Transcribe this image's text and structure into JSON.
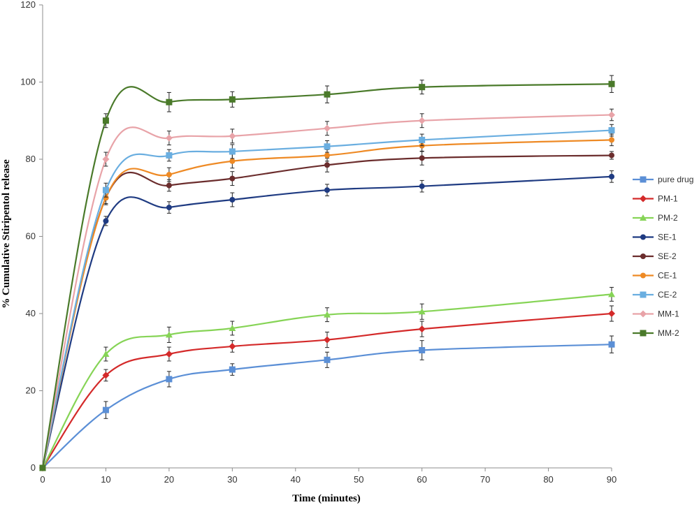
{
  "chart_data": {
    "type": "line",
    "title": "",
    "xlabel": "Time (minutes)",
    "ylabel": "% Cumulative Stiripentol release",
    "xlim": [
      0,
      90
    ],
    "ylim": [
      0,
      120
    ],
    "xticks": [
      0,
      10,
      20,
      30,
      40,
      50,
      60,
      70,
      80,
      90
    ],
    "yticks": [
      0,
      20,
      40,
      60,
      80,
      100,
      120
    ],
    "grid": false,
    "legend_position": "right",
    "x": [
      0,
      10,
      20,
      30,
      45,
      60,
      90
    ],
    "series": [
      {
        "name": "pure drug",
        "color": "#5b8fd6",
        "marker": "square",
        "values": [
          0,
          15,
          23,
          25.5,
          28,
          30.5,
          32
        ],
        "errors": [
          0,
          2.2,
          2,
          1.5,
          2,
          2.5,
          2.2
        ]
      },
      {
        "name": "PM-1",
        "color": "#d42a2a",
        "marker": "diamond",
        "values": [
          0,
          24,
          29.5,
          31.5,
          33.2,
          36,
          40
        ],
        "errors": [
          0,
          1.5,
          1.8,
          1.5,
          2,
          2,
          2
        ]
      },
      {
        "name": "PM-2",
        "color": "#86d456",
        "marker": "triangle",
        "values": [
          0,
          29.5,
          34.5,
          36.2,
          39.7,
          40.5,
          45
        ],
        "errors": [
          0,
          1.8,
          2,
          1.8,
          1.8,
          2,
          1.8
        ]
      },
      {
        "name": "SE-1",
        "color": "#1f3b82",
        "marker": "circle",
        "values": [
          0,
          64,
          67.5,
          69.5,
          72,
          73,
          75.5
        ],
        "errors": [
          0,
          1.2,
          1.5,
          1.8,
          1.5,
          1.5,
          1.5
        ]
      },
      {
        "name": "SE-2",
        "color": "#6b2d2d",
        "marker": "circle",
        "values": [
          0,
          70,
          73.2,
          75,
          78.5,
          80.3,
          81
        ],
        "errors": [
          0,
          1.5,
          1.5,
          1.8,
          1.8,
          1.8,
          1
        ]
      },
      {
        "name": "CE-1",
        "color": "#ee8a25",
        "marker": "circle",
        "values": [
          0,
          70,
          76,
          79.5,
          81,
          83.5,
          85
        ],
        "errors": [
          0,
          1.8,
          1.8,
          1.8,
          1.5,
          1.5,
          1.5
        ]
      },
      {
        "name": "CE-2",
        "color": "#6aaee0",
        "marker": "square",
        "values": [
          0,
          72,
          81,
          82,
          83.3,
          85,
          87.5
        ],
        "errors": [
          0,
          1.8,
          1.5,
          1.8,
          1.5,
          1.5,
          1.5
        ]
      },
      {
        "name": "MM-1",
        "color": "#e8a3a8",
        "marker": "diamond",
        "values": [
          0,
          80,
          85.5,
          86,
          88,
          90,
          91.5
        ],
        "errors": [
          0,
          1.8,
          1.8,
          1.8,
          1.8,
          1.8,
          1.5
        ]
      },
      {
        "name": "MM-2",
        "color": "#4a7a2a",
        "marker": "square",
        "values": [
          0,
          90,
          94.8,
          95.5,
          96.8,
          98.7,
          99.5
        ],
        "errors": [
          0,
          1.8,
          2.5,
          2,
          2.2,
          1.8,
          2.2
        ]
      }
    ]
  }
}
